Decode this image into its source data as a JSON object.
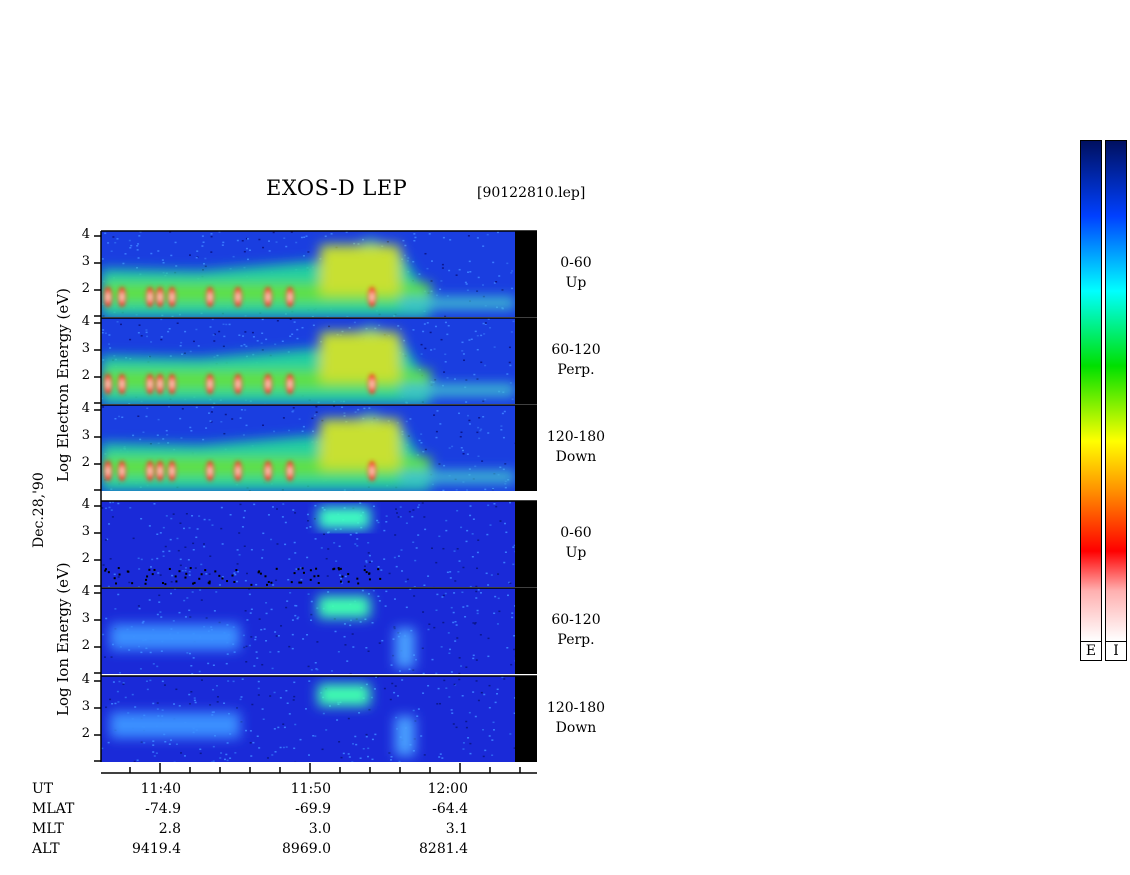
{
  "header": {
    "title": "EXOS-D LEP",
    "file": "[90122810.lep]"
  },
  "electron_group": {
    "ylabel": "Log  Electron  Energy (eV)",
    "panels": [
      {
        "range": "0-60",
        "dir": "Up"
      },
      {
        "range": "60-120",
        "dir": "Perp."
      },
      {
        "range": "120-180",
        "dir": "Down"
      }
    ]
  },
  "ion_group": {
    "ylabel": "Log  Ion  Energy (eV)",
    "panels": [
      {
        "range": "0-60",
        "dir": "Up"
      },
      {
        "range": "60-120",
        "dir": "Perp."
      },
      {
        "range": "120-180",
        "dir": "Down"
      }
    ]
  },
  "date_label": "Dec.28,'90",
  "ticks": [
    "4",
    "3",
    "2"
  ],
  "colorbars": {
    "labels": [
      "E",
      "I"
    ],
    "colors": [
      "#ffffff",
      "#ff0000",
      "#ffff00",
      "#00ff00",
      "#00ffff",
      "#0000ff",
      "#000080"
    ]
  },
  "ephemeris": {
    "row_labels": [
      "UT",
      "MLAT",
      "MLT",
      "ALT"
    ],
    "columns": [
      {
        "UT": "11:40",
        "MLAT": "-74.9",
        "MLT": "2.8",
        "ALT": "9419.4"
      },
      {
        "UT": "11:50",
        "MLAT": "-69.9",
        "MLT": "3.0",
        "ALT": "8969.0"
      },
      {
        "UT": "12:00",
        "MLAT": "-64.4",
        "MLT": "3.1",
        "ALT": "8281.4"
      }
    ]
  },
  "chart_data": {
    "type": "heatmap",
    "title": "EXOS-D LEP",
    "x_ticks": [
      "11:40",
      "11:50",
      "12:00"
    ],
    "y_range": [
      1,
      4
    ],
    "y_ticks": [
      2,
      3,
      4
    ],
    "panels": [
      {
        "species": "Electron",
        "range": "0-60",
        "dir": "Up"
      },
      {
        "species": "Electron",
        "range": "60-120",
        "dir": "Perp."
      },
      {
        "species": "Electron",
        "range": "120-180",
        "dir": "Down"
      },
      {
        "species": "Ion",
        "range": "0-60",
        "dir": "Up"
      },
      {
        "species": "Ion",
        "range": "60-120",
        "dir": "Perp."
      },
      {
        "species": "Ion",
        "range": "120-180",
        "dir": "Down"
      }
    ]
  }
}
